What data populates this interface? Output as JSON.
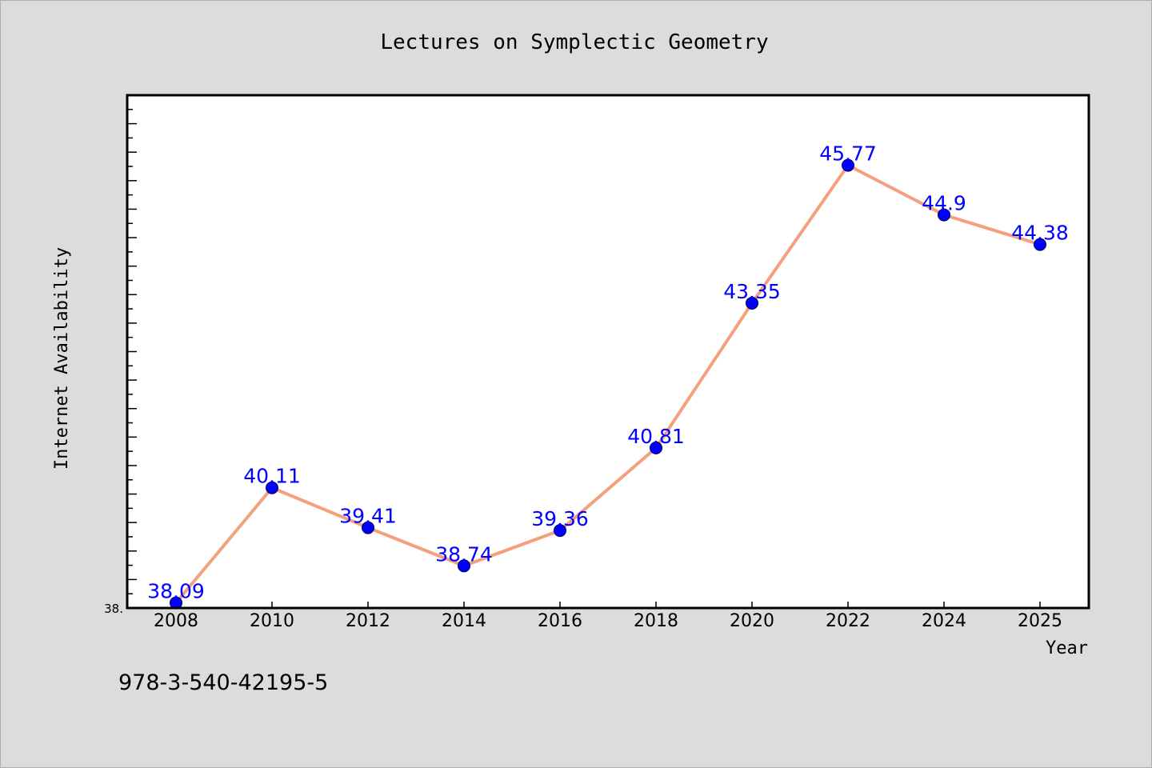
{
  "chart_data": {
    "type": "line",
    "title": "Lectures on Symplectic Geometry",
    "xlabel": "Year",
    "ylabel": "Internet Availability",
    "x": [
      2008,
      2010,
      2012,
      2014,
      2016,
      2018,
      2020,
      2022,
      2024,
      2025
    ],
    "x_tick_labels": [
      "2008",
      "2010",
      "2012",
      "2014",
      "2016",
      "2018",
      "2020",
      "2022",
      "2024",
      "2025"
    ],
    "series": [
      {
        "values": [
          38.09,
          40.11,
          39.41,
          38.74,
          39.36,
          40.81,
          43.35,
          45.77,
          44.9,
          44.38
        ],
        "labels": [
          "38.09",
          "40.11",
          "39.41",
          "38.74",
          "39.36",
          "40.81",
          "43.35",
          "45.77",
          "44.9",
          "44.38"
        ]
      }
    ],
    "y_tick_label": "38.",
    "ylim": [
      38.0,
      47.0
    ],
    "grid": false,
    "line_color": "#f4a07f",
    "marker_color": "#0000ff",
    "label_color": "#0000ff"
  },
  "footnote": "978-3-540-42195-5"
}
